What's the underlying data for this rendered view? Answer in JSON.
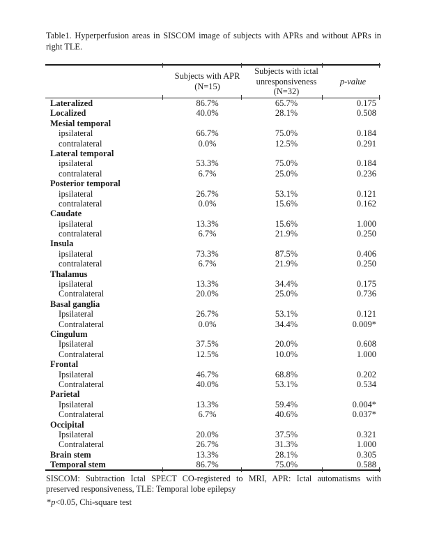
{
  "page": {
    "background": "#ffffff",
    "text_color": "#1d1d1d",
    "rule_color": "#1a1a1a"
  },
  "title": {
    "line1": "Table1. Hyperperfusion areas in SISCOM image of subjects with APRs and without APRs in",
    "line2": "right TLE."
  },
  "table": {
    "header": {
      "region": "",
      "apr": "Subjects with APR (N=15)",
      "unresp": "Subjects with ictal unresponsiveness (N=32)",
      "p": "p-value"
    },
    "rows": [
      {
        "label": "Lateralized",
        "level": "group",
        "apr": "86.7%",
        "unresp": "65.7%",
        "p": "0.175"
      },
      {
        "label": "Localized",
        "level": "group",
        "apr": "40.0%",
        "unresp": "28.1%",
        "p": "0.508"
      },
      {
        "label": "Mesial temporal",
        "level": "group",
        "apr": "",
        "unresp": "",
        "p": ""
      },
      {
        "label": "ipsilateral",
        "level": "sub",
        "apr": "66.7%",
        "unresp": "75.0%",
        "p": "0.184"
      },
      {
        "label": "contralateral",
        "level": "sub",
        "apr": "0.0%",
        "unresp": "12.5%",
        "p": "0.291"
      },
      {
        "label": "Lateral temporal",
        "level": "group",
        "apr": "",
        "unresp": "",
        "p": ""
      },
      {
        "label": "ipsilateral",
        "level": "sub",
        "apr": "53.3%",
        "unresp": "75.0%",
        "p": "0.184"
      },
      {
        "label": "contralateral",
        "level": "sub",
        "apr": "6.7%",
        "unresp": "25.0%",
        "p": "0.236"
      },
      {
        "label": "Posterior temporal",
        "level": "group",
        "apr": "",
        "unresp": "",
        "p": ""
      },
      {
        "label": "ipsilateral",
        "level": "sub",
        "apr": "26.7%",
        "unresp": "53.1%",
        "p": "0.121"
      },
      {
        "label": "contralateral",
        "level": "sub",
        "apr": "0.0%",
        "unresp": "15.6%",
        "p": "0.162"
      },
      {
        "label": "Caudate",
        "level": "group",
        "apr": "",
        "unresp": "",
        "p": ""
      },
      {
        "label": "ipsilateral",
        "level": "sub",
        "apr": "13.3%",
        "unresp": "15.6%",
        "p": "1.000"
      },
      {
        "label": "contralateral",
        "level": "sub",
        "apr": "6.7%",
        "unresp": "21.9%",
        "p": "0.250"
      },
      {
        "label": "Insula",
        "level": "group",
        "apr": "",
        "unresp": "",
        "p": ""
      },
      {
        "label": "ipsilateral",
        "level": "sub",
        "apr": "73.3%",
        "unresp": "87.5%",
        "p": "0.406"
      },
      {
        "label": "contralateral",
        "level": "sub",
        "apr": "6.7%",
        "unresp": "21.9%",
        "p": "0.250"
      },
      {
        "label": "Thalamus",
        "level": "group",
        "apr": "",
        "unresp": "",
        "p": ""
      },
      {
        "label": "ipsilateral",
        "level": "sub",
        "apr": "13.3%",
        "unresp": "34.4%",
        "p": "0.175"
      },
      {
        "label": "Contralateral",
        "level": "sub",
        "apr": "20.0%",
        "unresp": "25.0%",
        "p": "0.736"
      },
      {
        "label": "Basal ganglia",
        "level": "group",
        "apr": "",
        "unresp": "",
        "p": ""
      },
      {
        "label": "Ipsilateral",
        "level": "sub",
        "apr": "26.7%",
        "unresp": "53.1%",
        "p": "0.121"
      },
      {
        "label": "Contralateral",
        "level": "sub",
        "apr": "0.0%",
        "unresp": "34.4%",
        "p": "0.009*"
      },
      {
        "label": "Cingulum",
        "level": "group",
        "apr": "",
        "unresp": "",
        "p": ""
      },
      {
        "label": "Ipsilateral",
        "level": "sub",
        "apr": "37.5%",
        "unresp": "20.0%",
        "p": "0.608"
      },
      {
        "label": "Contralateral",
        "level": "sub",
        "apr": "12.5%",
        "unresp": "10.0%",
        "p": "1.000"
      },
      {
        "label": "Frontal",
        "level": "group",
        "apr": "",
        "unresp": "",
        "p": ""
      },
      {
        "label": "Ipsilateral",
        "level": "sub",
        "apr": "46.7%",
        "unresp": "68.8%",
        "p": "0.202"
      },
      {
        "label": "Contralateral",
        "level": "sub",
        "apr": "40.0%",
        "unresp": "53.1%",
        "p": "0.534"
      },
      {
        "label": "Parietal",
        "level": "group",
        "apr": "",
        "unresp": "",
        "p": ""
      },
      {
        "label": "Ipsilateral",
        "level": "sub",
        "apr": "13.3%",
        "unresp": "59.4%",
        "p": "0.004*"
      },
      {
        "label": "Contralateral",
        "level": "sub",
        "apr": "6.7%",
        "unresp": "40.6%",
        "p": "0.037*"
      },
      {
        "label": "Occipital",
        "level": "group",
        "apr": "",
        "unresp": "",
        "p": ""
      },
      {
        "label": "Ipsilateral",
        "level": "sub",
        "apr": "20.0%",
        "unresp": "37.5%",
        "p": "0.321"
      },
      {
        "label": "Contralateral",
        "level": "sub",
        "apr": "26.7%",
        "unresp": "31.3%",
        "p": "1.000"
      },
      {
        "label": "Brain stem",
        "level": "group",
        "apr": "13.3%",
        "unresp": "28.1%",
        "p": "0.305"
      },
      {
        "label": "Temporal stem",
        "level": "group",
        "apr": "86.7%",
        "unresp": "75.0%",
        "p": "0.588"
      }
    ]
  },
  "footnotes": {
    "abbrev_line1": "SISCOM: Subtraction Ictal SPECT CO-registered to MRI, APR: Ictal automatisms with",
    "abbrev_line2": "preserved responsiveness, TLE: Temporal lobe epilepsy",
    "significance": {
      "star": "*",
      "p": "p",
      "rest": "<0.05, Chi-square test"
    }
  }
}
